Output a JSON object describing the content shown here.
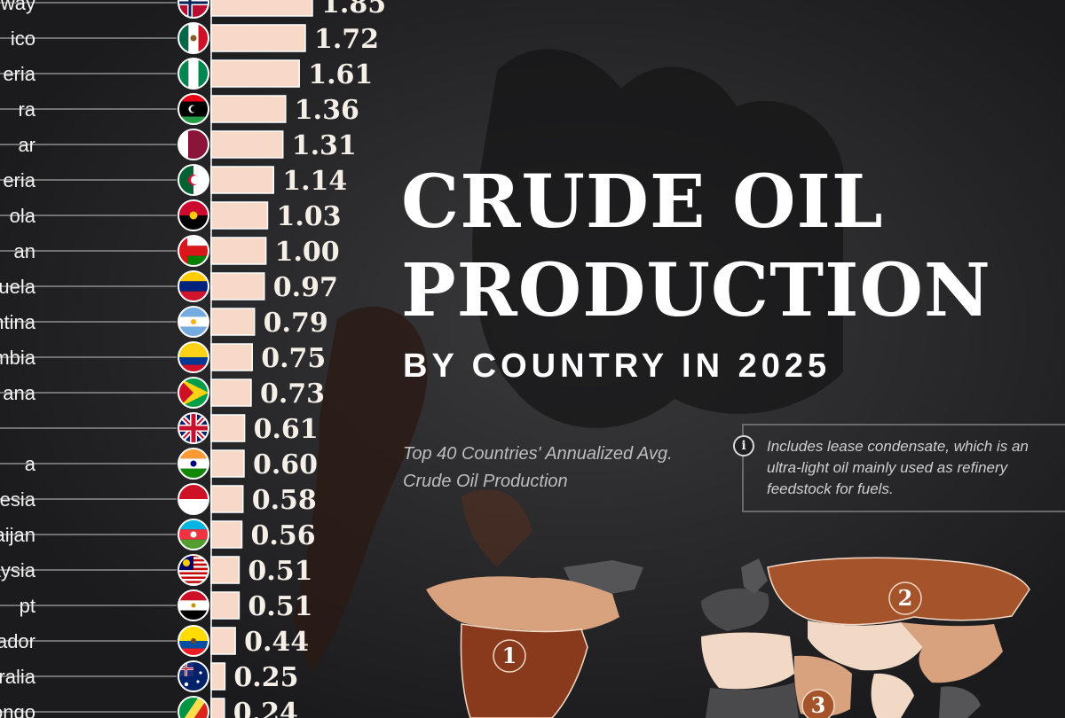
{
  "title_lines": [
    "CRUDE OIL",
    "PRODUCTION"
  ],
  "subtitle": "BY COUNTRY IN 2025",
  "description": "Top 40 Countries' Annualized Avg. Crude Oil Production",
  "note": "Includes lease condensate, which is an ultra-light oil mainly used as refinery feedstock for fuels.",
  "info_icon_glyph": "i",
  "colors": {
    "bar": "#f8d8c6",
    "background": "#1f1f21",
    "map_rank1": "#8a3a1c",
    "map_rank2": "#a5532b",
    "map_light": "#d9a27e",
    "map_pale": "#f2d9c6"
  },
  "map_ranks": [
    {
      "label": "1",
      "region": "North America"
    },
    {
      "label": "2",
      "region": "Russia"
    },
    {
      "label": "3",
      "region": "Middle East"
    }
  ],
  "chart_data": {
    "type": "bar",
    "orientation": "horizontal",
    "categories": [
      "way",
      "ico",
      "eria",
      "ra",
      "ar",
      "eria",
      "ola",
      "an",
      "ezuela",
      "entina",
      "ombia",
      "ana",
      "",
      "a",
      "onesia",
      "rbaijan",
      "aysia",
      "pt",
      "ador",
      "tralia",
      "of the Congo"
    ],
    "values": [
      1.85,
      1.72,
      1.61,
      1.36,
      1.31,
      1.14,
      1.03,
      1.0,
      0.97,
      0.79,
      0.75,
      0.73,
      0.61,
      0.6,
      0.58,
      0.56,
      0.51,
      0.51,
      0.44,
      0.25,
      0.24
    ],
    "value_labels": [
      "1.85",
      "1.72",
      "1.61",
      "1.36",
      "1.31",
      "1.14",
      "1.03",
      "1.00",
      "0.97",
      "0.79",
      "0.75",
      "0.73",
      "0.61",
      "0.60",
      "0.58",
      "0.56",
      "0.51",
      "0.51",
      "0.44",
      "0.25",
      "0.24"
    ],
    "flags": [
      "norway-flag",
      "mexico-flag",
      "nigeria-flag",
      "libya-flag",
      "qatar-flag",
      "algeria-flag",
      "angola-flag",
      "oman-flag",
      "venezuela-flag",
      "argentina-flag",
      "colombia-flag",
      "guyana-flag",
      "uk-flag",
      "india-flag",
      "indonesia-flag",
      "azerbaijan-flag",
      "malaysia-flag",
      "egypt-flag",
      "ecuador-flag",
      "australia-flag",
      "congo-flag"
    ],
    "xlim": [
      0,
      1.85
    ],
    "legend": "none",
    "grid": false
  }
}
